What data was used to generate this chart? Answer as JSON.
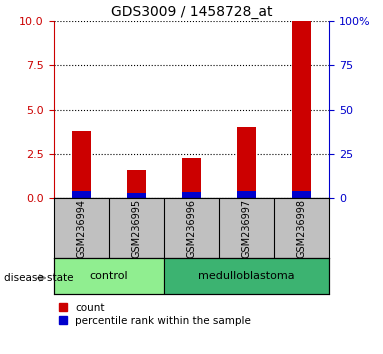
{
  "title": "GDS3009 / 1458728_at",
  "samples": [
    "GSM236994",
    "GSM236995",
    "GSM236996",
    "GSM236997",
    "GSM236998"
  ],
  "red_values": [
    3.8,
    1.6,
    2.3,
    4.0,
    10.0
  ],
  "blue_values": [
    0.4,
    0.3,
    0.35,
    0.4,
    0.4
  ],
  "left_ylim": [
    0,
    10
  ],
  "right_ylim": [
    0,
    100
  ],
  "left_yticks": [
    0,
    2.5,
    5,
    7.5,
    10
  ],
  "right_yticks": [
    0,
    25,
    50,
    75,
    100
  ],
  "right_yticklabels": [
    "0",
    "25",
    "50",
    "75",
    "100%"
  ],
  "groups": [
    {
      "label": "control",
      "indices": [
        0,
        1
      ],
      "color": "#90EE90"
    },
    {
      "label": "medulloblastoma",
      "indices": [
        2,
        3,
        4
      ],
      "color": "#3CB371"
    }
  ],
  "group_label": "disease state",
  "bar_width": 0.35,
  "red_color": "#CC0000",
  "blue_color": "#0000CC",
  "bg_color": "#C0C0C0",
  "legend_red": "count",
  "legend_blue": "percentile rank within the sample",
  "title_fontsize": 10,
  "tick_fontsize": 8,
  "left_tick_color": "#CC0000",
  "right_tick_color": "#0000CC"
}
